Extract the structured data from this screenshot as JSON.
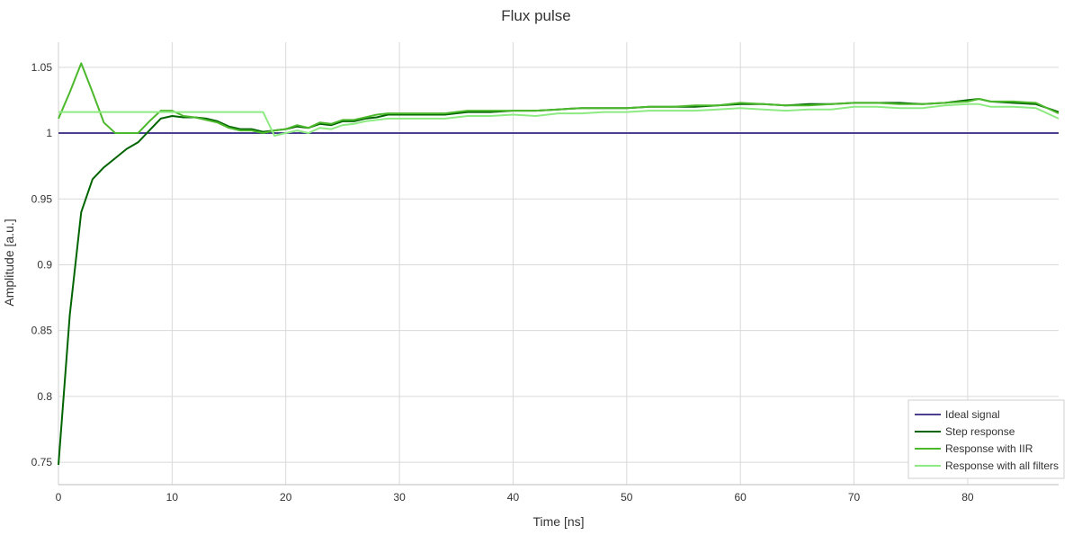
{
  "chart_data": {
    "type": "line",
    "title": "Flux pulse",
    "xlabel": "Time [ns]",
    "ylabel": "Amplitude [a.u.]",
    "xlim": [
      0,
      88
    ],
    "ylim": [
      0.733,
      1.069
    ],
    "x_ticks": [
      0,
      10,
      20,
      30,
      40,
      50,
      60,
      70,
      80
    ],
    "y_ticks": [
      0.75,
      0.8,
      0.85,
      0.9,
      0.95,
      1,
      1.05
    ],
    "y_tick_labels": [
      "0.75",
      "0.8",
      "0.85",
      "0.9",
      "0.95",
      "1",
      "1.05"
    ],
    "grid": true,
    "legend_position": "bottom-right",
    "series": [
      {
        "name": "Ideal signal",
        "color": "#4b3f8f",
        "x": [
          0,
          88
        ],
        "y": [
          1.0,
          1.0
        ]
      },
      {
        "name": "Step response",
        "color": "#006400",
        "x": [
          0,
          1,
          2,
          3,
          4,
          5,
          6,
          7,
          8,
          9,
          10,
          11,
          12,
          13,
          14,
          15,
          16,
          17,
          18,
          19,
          20,
          21,
          22,
          23,
          24,
          25,
          26,
          27,
          28,
          29,
          30,
          32,
          34,
          36,
          38,
          40,
          42,
          44,
          46,
          48,
          50,
          52,
          54,
          56,
          58,
          60,
          62,
          64,
          66,
          68,
          70,
          72,
          74,
          76,
          78,
          80,
          81,
          82,
          84,
          86,
          88
        ],
        "y": [
          0.748,
          0.862,
          0.94,
          0.965,
          0.974,
          0.981,
          0.988,
          0.993,
          1.002,
          1.011,
          1.013,
          1.012,
          1.012,
          1.011,
          1.009,
          1.005,
          1.003,
          1.003,
          1.001,
          1.002,
          1.003,
          1.005,
          1.004,
          1.007,
          1.006,
          1.009,
          1.009,
          1.011,
          1.012,
          1.014,
          1.014,
          1.014,
          1.014,
          1.016,
          1.016,
          1.017,
          1.017,
          1.018,
          1.019,
          1.019,
          1.019,
          1.02,
          1.02,
          1.02,
          1.021,
          1.022,
          1.022,
          1.021,
          1.022,
          1.022,
          1.023,
          1.023,
          1.023,
          1.022,
          1.023,
          1.025,
          1.026,
          1.024,
          1.023,
          1.022,
          1.016
        ]
      },
      {
        "name": "Response with IIR",
        "color": "#4cb82c",
        "x": [
          0,
          1,
          2,
          3,
          4,
          5,
          6,
          7,
          8,
          9,
          10,
          11,
          12,
          13,
          14,
          15,
          16,
          17,
          18,
          19,
          20,
          21,
          22,
          23,
          24,
          25,
          26,
          27,
          28,
          29,
          30,
          32,
          34,
          36,
          38,
          40,
          42,
          44,
          46,
          48,
          50,
          52,
          54,
          56,
          58,
          60,
          62,
          64,
          66,
          68,
          70,
          72,
          74,
          76,
          78,
          80,
          81,
          82,
          84,
          86,
          88
        ],
        "y": [
          1.011,
          1.031,
          1.053,
          1.031,
          1.008,
          1.0,
          1.0,
          1.0,
          1.009,
          1.017,
          1.017,
          1.013,
          1.012,
          1.01,
          1.008,
          1.004,
          1.002,
          1.002,
          1.0,
          1.002,
          1.003,
          1.006,
          1.004,
          1.008,
          1.007,
          1.01,
          1.01,
          1.012,
          1.014,
          1.015,
          1.015,
          1.015,
          1.015,
          1.017,
          1.017,
          1.017,
          1.017,
          1.018,
          1.019,
          1.019,
          1.019,
          1.02,
          1.02,
          1.021,
          1.021,
          1.023,
          1.022,
          1.021,
          1.021,
          1.022,
          1.023,
          1.023,
          1.022,
          1.022,
          1.023,
          1.024,
          1.026,
          1.024,
          1.024,
          1.023,
          1.015
        ]
      },
      {
        "name": "Response with all filters",
        "color": "#8eea83",
        "x": [
          0,
          1,
          2,
          3,
          4,
          5,
          6,
          7,
          8,
          9,
          10,
          11,
          12,
          13,
          14,
          15,
          16,
          17,
          18,
          19,
          20,
          21,
          22,
          23,
          24,
          25,
          26,
          27,
          28,
          29,
          30,
          32,
          34,
          36,
          38,
          40,
          42,
          44,
          46,
          48,
          50,
          52,
          54,
          56,
          58,
          60,
          62,
          64,
          66,
          68,
          70,
          72,
          74,
          76,
          78,
          80,
          81,
          82,
          84,
          86,
          88
        ],
        "y": [
          1.016,
          1.016,
          1.016,
          1.016,
          1.016,
          1.016,
          1.016,
          1.016,
          1.016,
          1.016,
          1.016,
          1.016,
          1.016,
          1.016,
          1.016,
          1.016,
          1.016,
          1.016,
          1.016,
          0.998,
          1.0,
          1.002,
          1.0,
          1.004,
          1.003,
          1.006,
          1.007,
          1.009,
          1.01,
          1.011,
          1.011,
          1.011,
          1.011,
          1.013,
          1.013,
          1.014,
          1.013,
          1.015,
          1.015,
          1.016,
          1.016,
          1.017,
          1.017,
          1.017,
          1.018,
          1.019,
          1.018,
          1.017,
          1.018,
          1.018,
          1.02,
          1.02,
          1.019,
          1.019,
          1.021,
          1.022,
          1.022,
          1.02,
          1.02,
          1.019,
          1.011
        ]
      }
    ]
  }
}
